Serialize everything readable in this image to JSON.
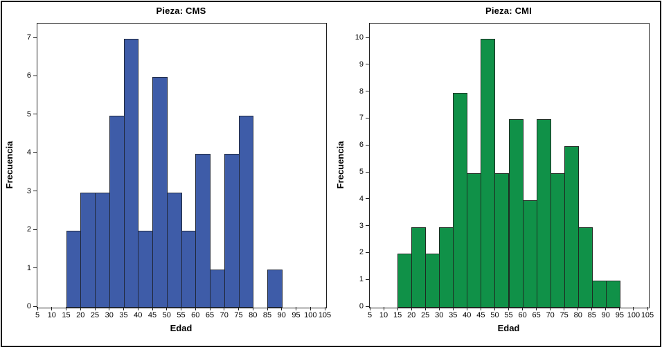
{
  "figure": {
    "background_color": "#ffffff",
    "frame_color": "#000000"
  },
  "chart_data": [
    {
      "type": "bar",
      "subtype": "histogram",
      "title": "Pieza: CMS",
      "xlabel": "Edad",
      "ylabel": "Frecuencia",
      "bar_color": "#3E5CA8",
      "bar_border_color": "#20283A",
      "axis_color": "#1f1f1f",
      "grid": false,
      "legend": false,
      "xlim": [
        5,
        105
      ],
      "x_ticks": [
        5,
        10,
        15,
        20,
        25,
        30,
        35,
        40,
        45,
        50,
        55,
        60,
        65,
        70,
        75,
        80,
        85,
        90,
        95,
        100,
        105
      ],
      "ylim": [
        0,
        7
      ],
      "y_ticks": [
        0,
        1,
        2,
        3,
        4,
        5,
        6,
        7
      ],
      "bin_width": 5,
      "bin_edges": [
        15,
        20,
        25,
        30,
        35,
        40,
        45,
        50,
        55,
        60,
        65,
        70,
        75,
        80,
        85,
        90
      ],
      "values": [
        2,
        3,
        3,
        5,
        7,
        2,
        6,
        3,
        2,
        4,
        1,
        4,
        5,
        0,
        1
      ]
    },
    {
      "type": "bar",
      "subtype": "histogram",
      "title": "Pieza: CMI",
      "xlabel": "Edad",
      "ylabel": "Frecuencia",
      "bar_color": "#109148",
      "bar_border_color": "#1E2B22",
      "axis_color": "#1f1f1f",
      "grid": false,
      "legend": false,
      "xlim": [
        5,
        105
      ],
      "x_ticks": [
        5,
        10,
        15,
        20,
        25,
        30,
        35,
        40,
        45,
        50,
        55,
        60,
        65,
        70,
        75,
        80,
        85,
        90,
        95,
        100,
        105
      ],
      "ylim": [
        0,
        10
      ],
      "y_ticks": [
        0,
        1,
        2,
        3,
        4,
        5,
        6,
        7,
        8,
        9,
        10
      ],
      "bin_width": 5,
      "bin_edges": [
        15,
        20,
        25,
        30,
        35,
        40,
        45,
        50,
        55,
        60,
        65,
        70,
        75,
        80,
        85,
        90,
        95
      ],
      "values": [
        2,
        3,
        2,
        3,
        8,
        5,
        10,
        5,
        7,
        4,
        7,
        5,
        6,
        3,
        1,
        1
      ]
    }
  ]
}
